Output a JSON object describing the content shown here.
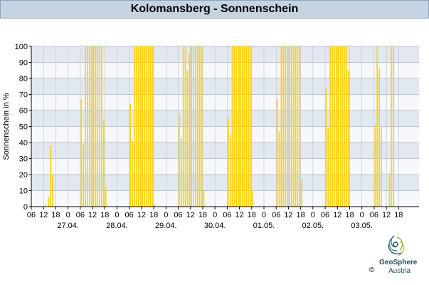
{
  "header": {
    "title": "Kolomansberg - Sonnenschein"
  },
  "logo": {
    "name": "GeoSphere",
    "sub": "Austria",
    "copyright": "©"
  },
  "colors": {
    "bar": "#ffd21a",
    "band_a": "#e2e8f0",
    "band_b": "#f6f8fb",
    "grid": "#b8c4d2",
    "title_bg": "#c5d3e3"
  },
  "chart_data": {
    "type": "bar",
    "title": "Kolomansberg - Sonnenschein",
    "ylabel": "Sonnenschein in %",
    "ylim": [
      0,
      100
    ],
    "yticks": [
      0,
      10,
      20,
      30,
      40,
      50,
      60,
      70,
      80,
      90,
      100
    ],
    "x_unit": "hours since 26.04. 06:00",
    "xlim": [
      0,
      190
    ],
    "hour_ticks": [
      {
        "t": 0,
        "label": "06"
      },
      {
        "t": 6,
        "label": "12"
      },
      {
        "t": 12,
        "label": "18"
      },
      {
        "t": 18,
        "label": "0"
      },
      {
        "t": 24,
        "label": "06"
      },
      {
        "t": 30,
        "label": "12"
      },
      {
        "t": 36,
        "label": "18"
      },
      {
        "t": 42,
        "label": "0"
      },
      {
        "t": 48,
        "label": "06"
      },
      {
        "t": 54,
        "label": "12"
      },
      {
        "t": 60,
        "label": "18"
      },
      {
        "t": 66,
        "label": "0"
      },
      {
        "t": 72,
        "label": "06"
      },
      {
        "t": 78,
        "label": "12"
      },
      {
        "t": 84,
        "label": "18"
      },
      {
        "t": 90,
        "label": "0"
      },
      {
        "t": 96,
        "label": "06"
      },
      {
        "t": 102,
        "label": "12"
      },
      {
        "t": 108,
        "label": "18"
      },
      {
        "t": 114,
        "label": "0"
      },
      {
        "t": 120,
        "label": "06"
      },
      {
        "t": 126,
        "label": "12"
      },
      {
        "t": 132,
        "label": "18"
      },
      {
        "t": 138,
        "label": "0"
      },
      {
        "t": 144,
        "label": "06"
      },
      {
        "t": 150,
        "label": "12"
      },
      {
        "t": 156,
        "label": "18"
      },
      {
        "t": 162,
        "label": "0"
      },
      {
        "t": 168,
        "label": "06"
      },
      {
        "t": 174,
        "label": "12"
      },
      {
        "t": 180,
        "label": "18"
      }
    ],
    "day_labels": [
      {
        "t": 18,
        "label": "27.04."
      },
      {
        "t": 42,
        "label": "28.04."
      },
      {
        "t": 66,
        "label": "29.04."
      },
      {
        "t": 90,
        "label": "30.04."
      },
      {
        "t": 114,
        "label": "01.05."
      },
      {
        "t": 138,
        "label": "02.05."
      },
      {
        "t": 162,
        "label": "03.05."
      }
    ],
    "bars": [
      [
        7,
        1
      ],
      [
        8.5,
        6
      ],
      [
        9.5,
        38
      ],
      [
        10.5,
        20
      ],
      [
        24.5,
        67
      ],
      [
        25.5,
        39
      ],
      [
        26.5,
        100
      ],
      [
        27.5,
        100
      ],
      [
        28.5,
        100
      ],
      [
        29.5,
        100
      ],
      [
        30.5,
        100
      ],
      [
        31.5,
        100
      ],
      [
        32.5,
        100
      ],
      [
        33.5,
        100
      ],
      [
        34.5,
        100
      ],
      [
        35.5,
        54
      ],
      [
        36.5,
        12
      ],
      [
        48.5,
        64
      ],
      [
        49.5,
        41
      ],
      [
        50.5,
        100
      ],
      [
        51.5,
        100
      ],
      [
        52.5,
        100
      ],
      [
        53.5,
        100
      ],
      [
        54.5,
        100
      ],
      [
        55.5,
        100
      ],
      [
        56.5,
        100
      ],
      [
        57.5,
        100
      ],
      [
        58.5,
        100
      ],
      [
        59.5,
        100
      ],
      [
        60.5,
        1
      ],
      [
        72.5,
        58
      ],
      [
        73.5,
        43
      ],
      [
        74.5,
        100
      ],
      [
        75.5,
        100
      ],
      [
        76.5,
        85
      ],
      [
        77.5,
        96
      ],
      [
        78.5,
        100
      ],
      [
        79.5,
        100
      ],
      [
        80.5,
        100
      ],
      [
        81.5,
        100
      ],
      [
        82.5,
        100
      ],
      [
        83.5,
        100
      ],
      [
        84.5,
        10
      ],
      [
        96.5,
        55
      ],
      [
        97.5,
        45
      ],
      [
        98.5,
        100
      ],
      [
        99.5,
        100
      ],
      [
        100.5,
        100
      ],
      [
        101.5,
        100
      ],
      [
        102.5,
        100
      ],
      [
        103.5,
        100
      ],
      [
        104.5,
        100
      ],
      [
        105.5,
        100
      ],
      [
        106.5,
        100
      ],
      [
        107.5,
        100
      ],
      [
        108.5,
        10
      ],
      [
        120.5,
        67
      ],
      [
        121.5,
        47
      ],
      [
        122.5,
        100
      ],
      [
        123.5,
        100
      ],
      [
        124.5,
        100
      ],
      [
        125.5,
        100
      ],
      [
        126.5,
        100
      ],
      [
        127.5,
        100
      ],
      [
        128.5,
        100
      ],
      [
        129.5,
        100
      ],
      [
        130.5,
        100
      ],
      [
        131.5,
        100
      ],
      [
        132.5,
        17
      ],
      [
        144.5,
        74
      ],
      [
        145.5,
        49
      ],
      [
        146.5,
        100
      ],
      [
        147.5,
        100
      ],
      [
        148.5,
        100
      ],
      [
        149.5,
        100
      ],
      [
        150.5,
        100
      ],
      [
        151.5,
        100
      ],
      [
        152.5,
        100
      ],
      [
        153.5,
        100
      ],
      [
        154.5,
        100
      ],
      [
        155.5,
        85
      ],
      [
        168.5,
        51
      ],
      [
        169.5,
        100
      ],
      [
        170.5,
        86
      ],
      [
        171.5,
        50
      ],
      [
        175.5,
        21
      ],
      [
        176.5,
        100
      ],
      [
        177.5,
        100
      ]
    ],
    "grid": true,
    "legend": "none"
  }
}
